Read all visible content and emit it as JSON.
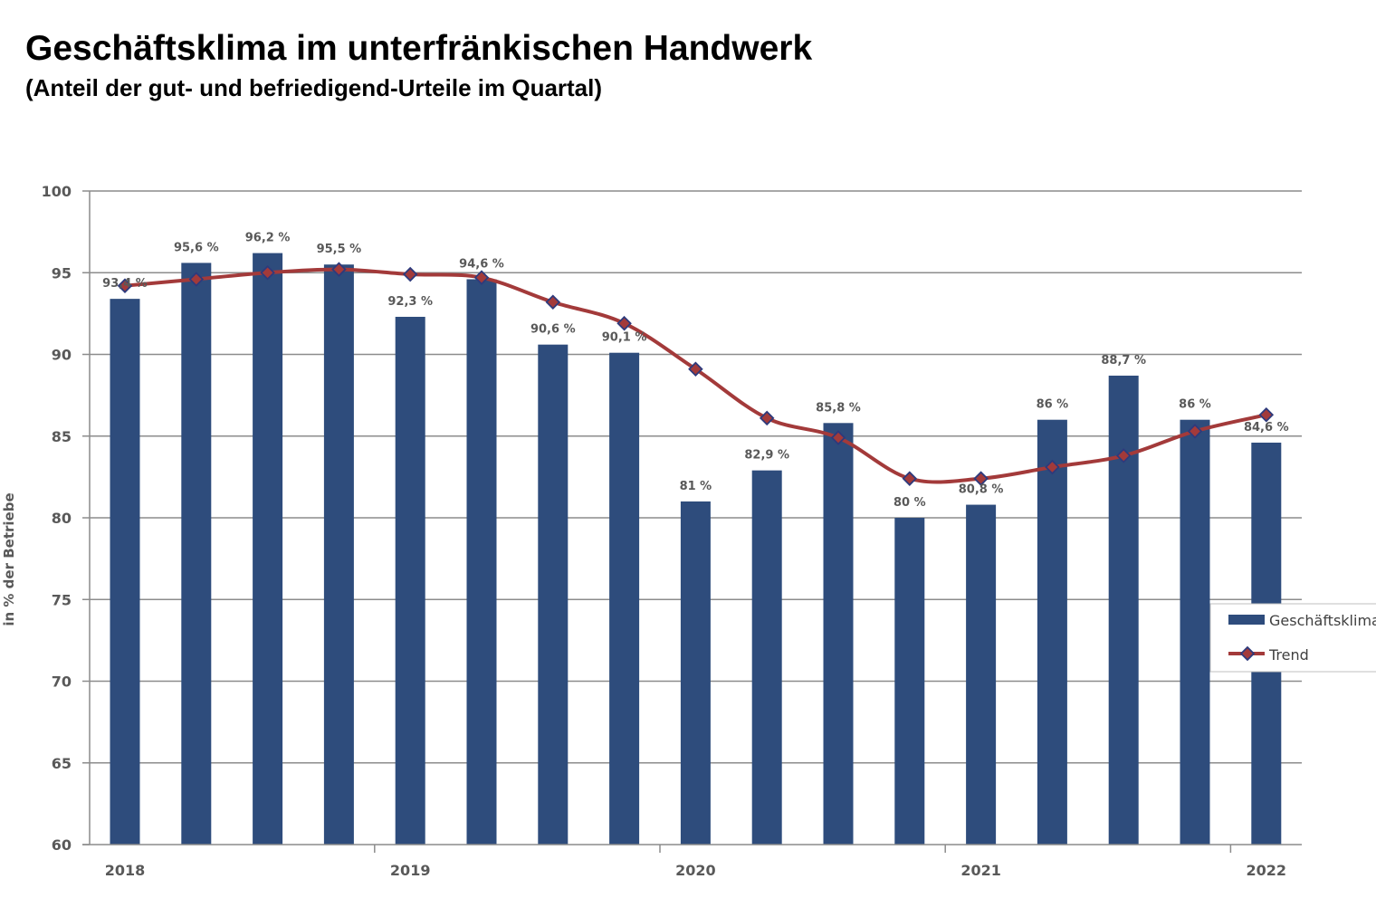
{
  "title": "Geschäftsklima im unterfränkischen Handwerk",
  "subtitle": "(Anteil der gut- und befriedigend-Urteile im Quartal)",
  "chart_data": {
    "type": "bar",
    "ylabel": "in % der Betriebe",
    "ylim": [
      60,
      100
    ],
    "yticks": [
      60,
      65,
      70,
      75,
      80,
      85,
      90,
      95,
      100
    ],
    "grid": true,
    "years": [
      "2018",
      "2019",
      "2020",
      "2021",
      "2022"
    ],
    "series": [
      {
        "name": "Geschäftsklima",
        "type": "bar",
        "color": "#2E4C7C",
        "values": [
          93.4,
          95.6,
          96.2,
          95.5,
          92.3,
          94.6,
          90.6,
          90.1,
          81,
          82.9,
          85.8,
          80,
          80.8,
          86,
          88.7,
          86,
          84.6
        ],
        "labels": [
          "93,4 %",
          "95,6 %",
          "96,2 %",
          "95,5 %",
          "92,3 %",
          "94,6 %",
          "90,6 %",
          "90,1 %",
          "81 %",
          "82,9 %",
          "85,8 %",
          "80 %",
          "80,8 %",
          "86 %",
          "88,7 %",
          "86 %",
          "84,6 %"
        ]
      },
      {
        "name": "Trend",
        "type": "line",
        "color": "#A33A3A",
        "marker_color": "#2E3A7C",
        "values": [
          94.2,
          94.6,
          95.0,
          95.2,
          94.9,
          94.7,
          93.2,
          91.9,
          89.1,
          86.1,
          84.9,
          82.4,
          82.4,
          83.1,
          83.8,
          85.3,
          86.3
        ]
      }
    ],
    "legend_position": "right"
  }
}
